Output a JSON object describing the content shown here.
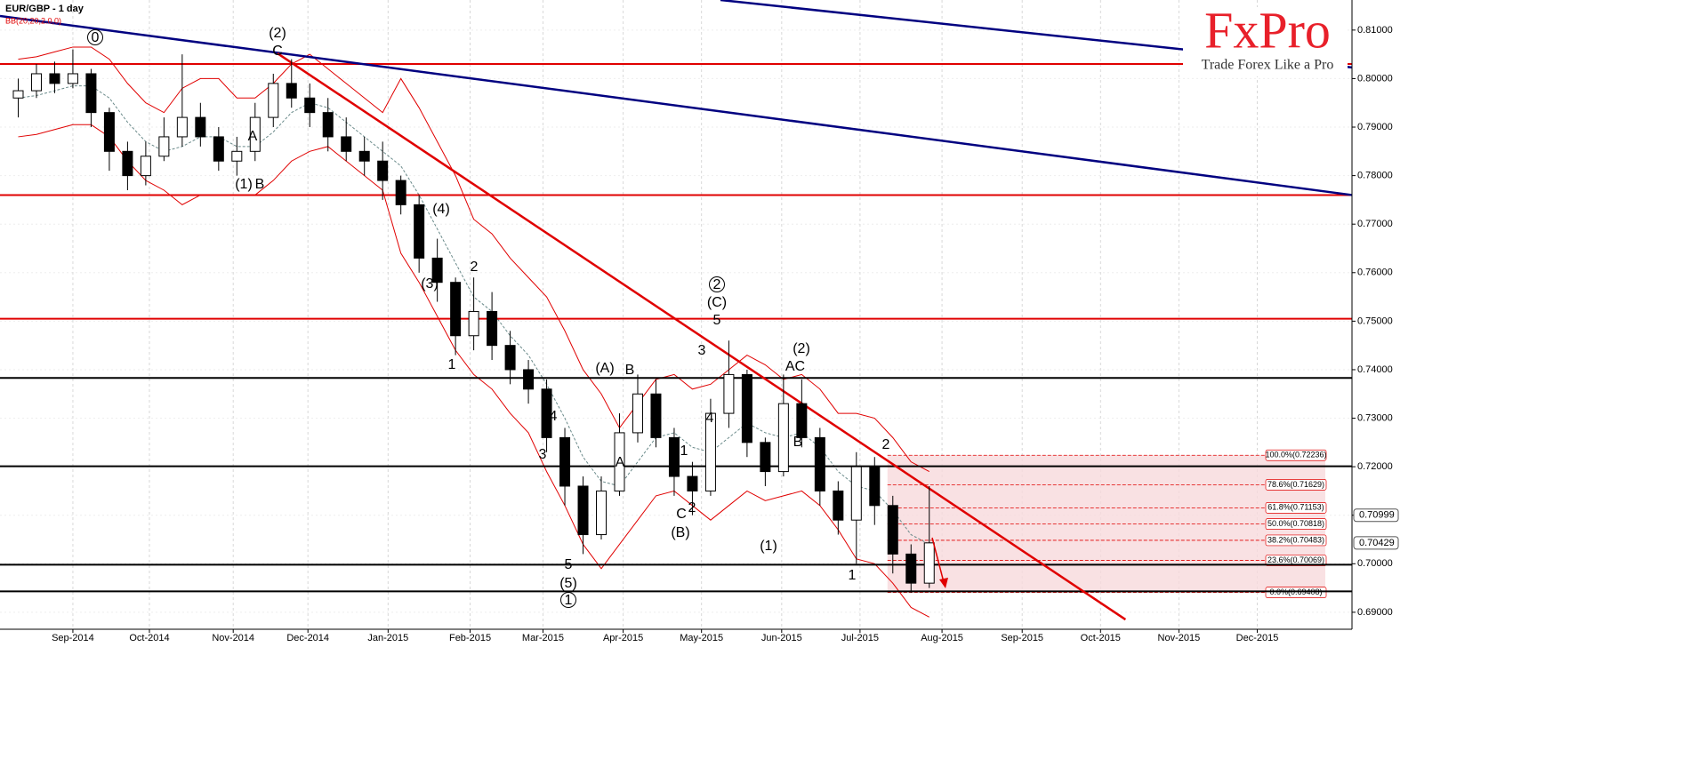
{
  "chart_data": {
    "type": "candlestick",
    "title": "EUR/GBP - 1 day",
    "indicator": "BB(20,20,2.0,0)",
    "logo": {
      "brand": "FxPro",
      "slogan": "Trade Forex Like a Pro"
    },
    "x": [
      -3,
      -2,
      -1,
      0,
      1,
      2,
      3,
      4,
      5,
      6,
      7,
      8,
      9,
      10,
      11,
      12,
      13,
      14,
      15,
      16,
      17,
      18,
      19,
      20,
      21,
      22,
      23,
      24,
      25,
      26,
      27,
      28,
      29,
      30,
      31,
      32,
      33,
      34,
      35,
      36,
      37,
      38,
      39,
      40,
      41,
      42,
      43,
      44,
      45,
      46,
      47
    ],
    "series": {
      "open": [
        0.796,
        0.7975,
        0.801,
        0.799,
        0.801,
        0.793,
        0.785,
        0.78,
        0.784,
        0.788,
        0.792,
        0.788,
        0.783,
        0.785,
        0.792,
        0.799,
        0.796,
        0.793,
        0.788,
        0.785,
        0.783,
        0.779,
        0.774,
        0.763,
        0.758,
        0.747,
        0.752,
        0.745,
        0.74,
        0.736,
        0.726,
        0.716,
        0.706,
        0.715,
        0.727,
        0.735,
        0.726,
        0.718,
        0.715,
        0.731,
        0.739,
        0.725,
        0.719,
        0.733,
        0.726,
        0.715,
        0.709,
        0.72,
        0.712,
        0.702,
        0.696
      ],
      "high": [
        0.8,
        0.803,
        0.8035,
        0.806,
        0.802,
        0.794,
        0.787,
        0.787,
        0.792,
        0.805,
        0.795,
        0.79,
        0.788,
        0.795,
        0.801,
        0.804,
        0.799,
        0.796,
        0.792,
        0.788,
        0.787,
        0.78,
        0.776,
        0.767,
        0.759,
        0.759,
        0.756,
        0.748,
        0.742,
        0.738,
        0.728,
        0.718,
        0.718,
        0.731,
        0.739,
        0.738,
        0.728,
        0.721,
        0.734,
        0.746,
        0.74,
        0.726,
        0.739,
        0.738,
        0.728,
        0.717,
        0.723,
        0.722,
        0.714,
        0.704,
        0.716
      ],
      "low": [
        0.792,
        0.796,
        0.797,
        0.798,
        0.79,
        0.781,
        0.777,
        0.778,
        0.783,
        0.786,
        0.786,
        0.781,
        0.78,
        0.783,
        0.79,
        0.794,
        0.79,
        0.785,
        0.783,
        0.78,
        0.775,
        0.772,
        0.76,
        0.754,
        0.743,
        0.744,
        0.742,
        0.737,
        0.733,
        0.723,
        0.712,
        0.702,
        0.705,
        0.714,
        0.725,
        0.724,
        0.714,
        0.71,
        0.714,
        0.728,
        0.722,
        0.716,
        0.718,
        0.724,
        0.712,
        0.706,
        0.7,
        0.708,
        0.698,
        0.694,
        0.695
      ],
      "close": [
        0.7975,
        0.801,
        0.799,
        0.801,
        0.793,
        0.785,
        0.78,
        0.784,
        0.788,
        0.792,
        0.788,
        0.783,
        0.785,
        0.792,
        0.799,
        0.796,
        0.793,
        0.788,
        0.785,
        0.783,
        0.779,
        0.774,
        0.763,
        0.758,
        0.747,
        0.752,
        0.745,
        0.74,
        0.736,
        0.726,
        0.716,
        0.706,
        0.715,
        0.727,
        0.735,
        0.726,
        0.718,
        0.715,
        0.731,
        0.739,
        0.725,
        0.719,
        0.733,
        0.726,
        0.715,
        0.709,
        0.72,
        0.712,
        0.702,
        0.696,
        0.7043
      ]
    },
    "bollinger": {
      "color": "#e00000",
      "middle_color": "#6a8a8a",
      "upper": [
        0.804,
        0.8045,
        0.8055,
        0.8065,
        0.8065,
        0.804,
        0.799,
        0.795,
        0.793,
        0.798,
        0.8,
        0.8,
        0.796,
        0.796,
        0.799,
        0.803,
        0.805,
        0.802,
        0.799,
        0.796,
        0.793,
        0.8,
        0.794,
        0.787,
        0.78,
        0.771,
        0.768,
        0.763,
        0.759,
        0.755,
        0.748,
        0.74,
        0.735,
        0.728,
        0.733,
        0.738,
        0.739,
        0.736,
        0.737,
        0.74,
        0.743,
        0.741,
        0.738,
        0.739,
        0.736,
        0.731,
        0.731,
        0.73,
        0.726,
        0.721,
        0.719
      ],
      "middle": [
        0.796,
        0.7965,
        0.7975,
        0.7985,
        0.7985,
        0.796,
        0.791,
        0.787,
        0.785,
        0.786,
        0.788,
        0.788,
        0.786,
        0.786,
        0.789,
        0.793,
        0.795,
        0.794,
        0.791,
        0.788,
        0.785,
        0.782,
        0.776,
        0.769,
        0.762,
        0.755,
        0.752,
        0.747,
        0.743,
        0.737,
        0.73,
        0.722,
        0.717,
        0.716,
        0.721,
        0.726,
        0.727,
        0.724,
        0.723,
        0.726,
        0.729,
        0.727,
        0.726,
        0.727,
        0.724,
        0.719,
        0.716,
        0.715,
        0.711,
        0.706,
        0.704
      ],
      "lower": [
        0.788,
        0.7885,
        0.7895,
        0.7905,
        0.7905,
        0.788,
        0.783,
        0.779,
        0.777,
        0.774,
        0.776,
        0.776,
        0.776,
        0.776,
        0.779,
        0.783,
        0.785,
        0.786,
        0.783,
        0.78,
        0.777,
        0.764,
        0.758,
        0.751,
        0.744,
        0.739,
        0.736,
        0.731,
        0.727,
        0.719,
        0.712,
        0.704,
        0.699,
        0.704,
        0.709,
        0.714,
        0.715,
        0.712,
        0.709,
        0.712,
        0.715,
        0.713,
        0.714,
        0.715,
        0.712,
        0.707,
        0.701,
        0.7,
        0.696,
        0.691,
        0.689
      ]
    },
    "xlim": [
      -4,
      70.2
    ],
    "xticks": [
      {
        "value": 0,
        "label": "Sep-2014"
      },
      {
        "value": 4.2,
        "label": "Oct-2014"
      },
      {
        "value": 8.8,
        "label": "Nov-2014"
      },
      {
        "value": 12.9,
        "label": "Dec-2014"
      },
      {
        "value": 17.3,
        "label": "Jan-2015"
      },
      {
        "value": 21.8,
        "label": "Feb-2015"
      },
      {
        "value": 25.8,
        "label": "Mar-2015"
      },
      {
        "value": 30.2,
        "label": "Apr-2015"
      },
      {
        "value": 34.5,
        "label": "May-2015"
      },
      {
        "value": 38.9,
        "label": "Jun-2015"
      },
      {
        "value": 43.2,
        "label": "Jul-2015"
      },
      {
        "value": 47.7,
        "label": "Aug-2015"
      },
      {
        "value": 52.1,
        "label": "Sep-2015"
      },
      {
        "value": 56.4,
        "label": "Oct-2015"
      },
      {
        "value": 60.7,
        "label": "Nov-2015"
      },
      {
        "value": 65.0,
        "label": "Dec-2015"
      }
    ],
    "ylim": [
      0.6865,
      0.8162
    ],
    "yticks": [
      {
        "value": 0.69,
        "label": "0.69000"
      },
      {
        "value": 0.7,
        "label": "0.70000"
      },
      {
        "value": 0.71,
        "label": "0.71000"
      },
      {
        "value": 0.72,
        "label": "0.72000"
      },
      {
        "value": 0.73,
        "label": "0.73000"
      },
      {
        "value": 0.74,
        "label": "0.74000"
      },
      {
        "value": 0.75,
        "label": "0.75000"
      },
      {
        "value": 0.76,
        "label": "0.76000"
      },
      {
        "value": 0.77,
        "label": "0.77000"
      },
      {
        "value": 0.78,
        "label": "0.78000"
      },
      {
        "value": 0.79,
        "label": "0.79000"
      },
      {
        "value": 0.8,
        "label": "0.80000"
      },
      {
        "value": 0.81,
        "label": "0.81000"
      }
    ],
    "grid": true,
    "price_tags": [
      {
        "value": 0.70999,
        "label": "0.70999"
      },
      {
        "value": 0.70429,
        "label": "0.70429"
      }
    ],
    "horizontal_lines": [
      {
        "value": 0.803,
        "color": "#e00000"
      },
      {
        "value": 0.776,
        "color": "#e00000"
      },
      {
        "value": 0.7505,
        "color": "#e00000"
      },
      {
        "value": 0.7383,
        "color": "#000000"
      },
      {
        "value": 0.7201,
        "color": "#000000"
      },
      {
        "value": 0.6998,
        "color": "#000000"
      },
      {
        "value": 0.6943,
        "color": "#000000"
      }
    ],
    "trendlines": [
      {
        "x": [
          -4,
          70.2
        ],
        "y": [
          0.8129,
          0.776
        ],
        "color": "#000080"
      },
      {
        "x": [
          35.54,
          70.2
        ],
        "y": [
          0.8162,
          0.8023
        ],
        "color": "#000080"
      },
      {
        "x": [
          11.23,
          57.77
        ],
        "y": [
          0.8052,
          0.6885
        ],
        "color": "#e00000"
      }
    ],
    "fibonacci": {
      "color": "#e00000",
      "levels": [
        {
          "value": 0.72236,
          "label": "100.0%(0.72236)"
        },
        {
          "value": 0.71629,
          "label": "78.6%(0.71629)"
        },
        {
          "value": 0.71153,
          "label": "61.8%(0.71153)"
        },
        {
          "value": 0.70818,
          "label": "50.0%(0.70818)"
        },
        {
          "value": 0.70483,
          "label": "38.2%(0.70483)"
        },
        {
          "value": 0.70069,
          "label": "23.6%(0.70069)"
        },
        {
          "value": 0.69408,
          "label": "0.0%(0.69408)"
        }
      ]
    },
    "wave_labels": [
      {
        "text": "0",
        "circled": true
      },
      {
        "text": "(2)",
        "circled": false
      },
      {
        "text": "C",
        "circled": false
      },
      {
        "text": "A",
        "circled": false
      },
      {
        "text": "(1)",
        "circled": false
      },
      {
        "text": "B",
        "circled": false
      },
      {
        "text": "(4)",
        "circled": false
      },
      {
        "text": "(3)",
        "circled": false
      },
      {
        "text": "2",
        "circled": false
      },
      {
        "text": "1",
        "circled": false
      },
      {
        "text": "4",
        "circled": false
      },
      {
        "text": "3",
        "circled": false
      },
      {
        "text": "5",
        "circled": false
      },
      {
        "text": "(5)",
        "circled": false
      },
      {
        "text": "1",
        "circled": true
      },
      {
        "text": "(A)",
        "circled": false
      },
      {
        "text": "B",
        "circled": false
      },
      {
        "text": "A",
        "circled": false
      },
      {
        "text": "1",
        "circled": false
      },
      {
        "text": "C",
        "circled": false
      },
      {
        "text": "2",
        "circled": false
      },
      {
        "text": "(B)",
        "circled": false
      },
      {
        "text": "2",
        "circled": true
      },
      {
        "text": "(C)",
        "circled": false
      },
      {
        "text": "5",
        "circled": false
      },
      {
        "text": "3",
        "circled": false
      },
      {
        "text": "4",
        "circled": false
      },
      {
        "text": "AC",
        "circled": false
      },
      {
        "text": "(2)",
        "circled": false
      },
      {
        "text": "B",
        "circled": false
      },
      {
        "text": "(1)",
        "circled": false
      },
      {
        "text": "2",
        "circled": false
      },
      {
        "text": "1",
        "circled": false
      }
    ]
  }
}
